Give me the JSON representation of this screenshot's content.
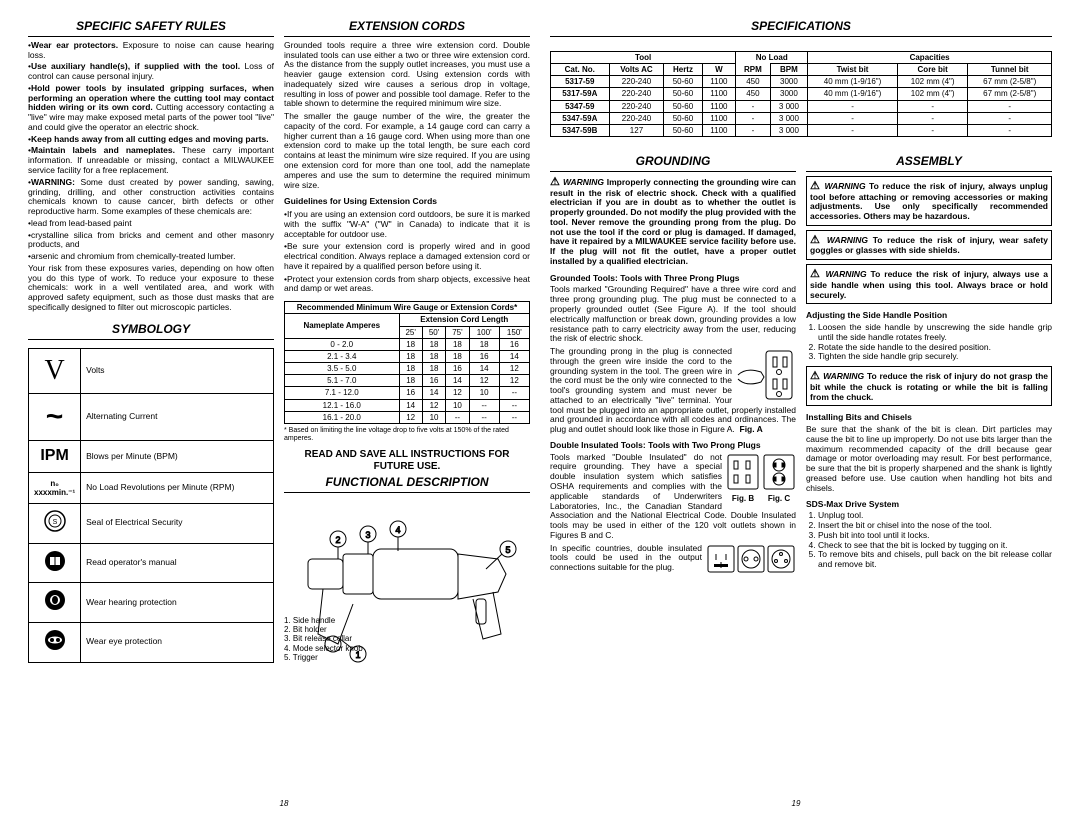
{
  "left_page_num": "18",
  "right_page_num": "19",
  "sections": {
    "safety_rules": {
      "title": "SPECIFIC SAFETY RULES",
      "items": [
        {
          "bold": "Wear ear protectors.",
          "rest": " Exposure to noise can cause hearing loss."
        },
        {
          "bold": "Use auxiliary handle(s), if supplied with the tool.",
          "rest": " Loss of control can cause personal injury."
        },
        {
          "bold": "Hold power tools by insulated gripping surfaces, when performing an operation where the cutting tool may contact hidden wiring or its own cord.",
          "rest": " Cutting accessory contacting a \"live\" wire may make exposed metal parts of the power tool \"live\" and could give the operator an electric shock."
        },
        {
          "bold": "Keep hands away from all cutting edges and moving parts.",
          "rest": ""
        },
        {
          "bold": "Maintain labels and nameplates.",
          "rest": " These carry important information. If unreadable or missing, contact a MILWAUKEE service facility for a free replacement."
        },
        {
          "bold": "WARNING:",
          "rest": " Some dust created by power sanding, sawing, grinding, drilling, and other construction activities contains chemicals known to cause cancer, birth defects or other reproductive harm. Some examples of these chemicals are:"
        }
      ],
      "sublist": [
        "lead from lead-based paint",
        "crystalline silica from bricks and cement and other masonry products, and",
        "arsenic and chromium from chemically-treated lumber."
      ],
      "tail": "Your risk from these exposures varies, depending on how often you do this type of work. To reduce your exposure to these chemicals: work in a well ventilated area, and work with approved safety equipment, such as those dust masks that are specifically designed to filter out microscopic particles."
    },
    "symbology": {
      "title": "SYMBOLOGY",
      "rows": [
        {
          "sym": "V",
          "label": "Volts"
        },
        {
          "sym": "~",
          "label": "Alternating Current"
        },
        {
          "sym": "IPM",
          "label": "Blows per Minute (BPM)"
        },
        {
          "sym": "n₀ xxxxmin.⁻¹",
          "label": "No Load Revolutions per Minute (RPM)"
        },
        {
          "sym": "seal",
          "label": "Seal of Electrical Security"
        },
        {
          "sym": "manual",
          "label": "Read operator's manual"
        },
        {
          "sym": "hearing",
          "label": "Wear hearing protection"
        },
        {
          "sym": "eye",
          "label": "Wear eye protection"
        }
      ]
    },
    "extension": {
      "title": "EXTENSION CORDS",
      "intro": "Grounded tools require a three wire extension cord. Double insulated tools can use either a two or three wire extension cord. As the distance from the supply outlet increases, you must use a heavier gauge extension cord. Using extension cords with inadequately sized wire causes a serious drop in voltage, resulting in loss of power and possible tool damage. Refer to the table shown to determine the required minimum wire size.",
      "p2": "The smaller the gauge number of the wire, the greater the capacity of the cord. For example, a 14 gauge cord can carry a higher current than a 16 gauge cord. When using more than one extension cord to make up the total length, be sure each cord contains at least the minimum wire size required. If you are using one extension cord for more than one tool, add the nameplate amperes and use the sum to determine the required minimum wire size.",
      "guidelines_title": "Guidelines for Using Extension Cords",
      "guidelines": [
        "If you are using an extension cord outdoors, be sure it is marked with the suffix \"W-A\" (\"W\" in Canada) to indicate that it is acceptable for outdoor use.",
        "Be sure your extension cord is properly wired and in good electrical condition. Always replace a damaged extension cord or have it repaired by a qualified person before using it.",
        "Protect your extension cords from sharp objects, excessive heat and damp or wet areas."
      ],
      "table": {
        "title": "Recommended Minimum Wire Gauge or Extension Cords*",
        "nameplate": "Nameplate Amperes",
        "cordlen": "Extension Cord Length",
        "lens": [
          "25'",
          "50'",
          "75'",
          "100'",
          "150'"
        ],
        "rows": [
          [
            "0 - 2.0",
            "18",
            "18",
            "18",
            "18",
            "16"
          ],
          [
            "2.1 - 3.4",
            "18",
            "18",
            "18",
            "16",
            "14"
          ],
          [
            "3.5 - 5.0",
            "18",
            "18",
            "16",
            "14",
            "12"
          ],
          [
            "5.1 - 7.0",
            "18",
            "16",
            "14",
            "12",
            "12"
          ],
          [
            "7.1 - 12.0",
            "16",
            "14",
            "12",
            "10",
            "--"
          ],
          [
            "12.1 - 16.0",
            "14",
            "12",
            "10",
            "--",
            "--"
          ],
          [
            "16.1 - 20.0",
            "12",
            "10",
            "--",
            "--",
            "--"
          ]
        ],
        "footnote": "* Based on limiting the line voltage drop to five volts at 150% of the rated amperes."
      },
      "read_save": "READ AND SAVE ALL INSTRUCTIONS FOR FUTURE USE."
    },
    "functional": {
      "title": "FUNCTIONAL DESCRIPTION",
      "parts": [
        "1. Side handle",
        "2. Bit holder",
        "3. Bit release collar",
        "4. Mode selector knob",
        "5. Trigger"
      ]
    },
    "specs": {
      "title": "SPECIFICATIONS",
      "tool_head": "Tool",
      "capacities_head": "Capacities",
      "cols": [
        "Cat. No.",
        "Volts AC",
        "Hertz",
        "W",
        "No Load RPM",
        "BPM",
        "Twist bit",
        "Core bit",
        "Tunnel bit"
      ],
      "rows": [
        [
          "5317-59",
          "220-240",
          "50-60",
          "1100",
          "450",
          "3000",
          "40 mm (1-9/16\")",
          "102 mm (4\")",
          "67 mm (2-5/8\")"
        ],
        [
          "5317-59A",
          "220-240",
          "50-60",
          "1100",
          "450",
          "3000",
          "40 mm (1-9/16\")",
          "102 mm (4\")",
          "67 mm (2-5/8\")"
        ],
        [
          "5347-59",
          "220-240",
          "50-60",
          "1100",
          "-",
          "3 000",
          "-",
          "-",
          "-"
        ],
        [
          "5347-59A",
          "220-240",
          "50-60",
          "1100",
          "-",
          "3 000",
          "-",
          "-",
          "-"
        ],
        [
          "5347-59B",
          "127",
          "50-60",
          "1100",
          "-",
          "3 000",
          "-",
          "-",
          "-"
        ]
      ]
    },
    "grounding": {
      "title": "GROUNDING",
      "warning": "Improperly connecting the grounding wire can result in the risk of electric shock. Check with a qualified electrician if you are in doubt as to whether the outlet is properly grounded. Do not modify the plug provided with the tool. Never remove the grounding prong from the plug. Do not use the tool if the cord or plug is damaged. If damaged, have it repaired by a MILWAUKEE service facility before use. If the plug will not fit the outlet, have a proper outlet installed by a qualified electrician.",
      "three_prong_title": "Grounded Tools: Tools with Three Prong Plugs",
      "three_prong_body": "Tools marked \"Grounding Required\" have a three wire cord and three prong grounding plug. The plug must be connected to a properly grounded outlet (See Figure A). If the tool should electrically malfunction or break down, grounding provides a low resistance path to carry electricity away from the user, reducing the risk of electric shock.",
      "three_prong_p2": "The grounding prong in the plug is connected through the green wire inside the cord to the grounding system in the tool. The green wire in the cord must be the only wire connected to the tool's grounding system and must never be attached to an electrically \"live\" terminal. Your tool must be plugged into an appropriate outlet, properly installed and grounded in accordance with all codes and ordinances. The plug and outlet should look like those in Figure A.",
      "figA": "Fig. A",
      "double_title": "Double Insulated Tools: Tools with Two Prong Plugs",
      "double_body": "Tools marked \"Double Insulated\" do not require grounding. They have a special double insulation system which satisfies OSHA requirements and complies with the applicable standards of Underwriters Laboratories, Inc., the Canadian Standard Association and the National Electrical Code. Double Insulated tools may be used in either of the 120 volt outlets shown in Figures B and C.",
      "double_p2": "In specific countries, double insulated tools could be used in the output connections suitable for the plug.",
      "figB": "Fig. B",
      "figC": "Fig. C"
    },
    "assembly": {
      "title": "ASSEMBLY",
      "warn1": "To reduce the risk of injury, always unplug tool before attaching or removing accessories or making adjustments. Use only specifically recommended accessories. Others may be hazardous.",
      "warn2": "To reduce the risk of injury, wear safety goggles or glasses with side shields.",
      "warn3": "To reduce the risk of injury, always use a side handle when using this tool. Always brace or hold securely.",
      "side_handle_title": "Adjusting the Side Handle Position",
      "side_handle_steps": [
        "Loosen the side handle by unscrewing the side handle grip until the side handle rotates freely.",
        "Rotate the side handle to the desired position.",
        "Tighten the side handle grip securely."
      ],
      "warn4": "To reduce the risk of injury do not grasp the bit while the chuck is rotating or while the bit is falling from the chuck.",
      "bits_title": "Installing Bits and Chisels",
      "bits_body": "Be sure that the shank of the bit is clean. Dirt particles may cause the bit to line up improperly. Do not use bits larger than the maximum recommended capacity of the drill because gear damage or motor overloading may result. For best performance, be sure that the bit is properly sharpened and the shank is lightly greased before use. Use caution when handling hot bits and chisels.",
      "sds_title": "SDS-Max Drive System",
      "sds_steps": [
        "Unplug tool.",
        "Insert the bit or chisel into the nose of the tool.",
        "Push bit into tool until it locks.",
        "Check to see that the bit is locked by tugging on it.",
        "To remove bits and chisels, pull back on the bit release collar and remove bit."
      ]
    }
  },
  "colors": {
    "text": "#000000",
    "bg": "#ffffff",
    "border": "#000000"
  }
}
